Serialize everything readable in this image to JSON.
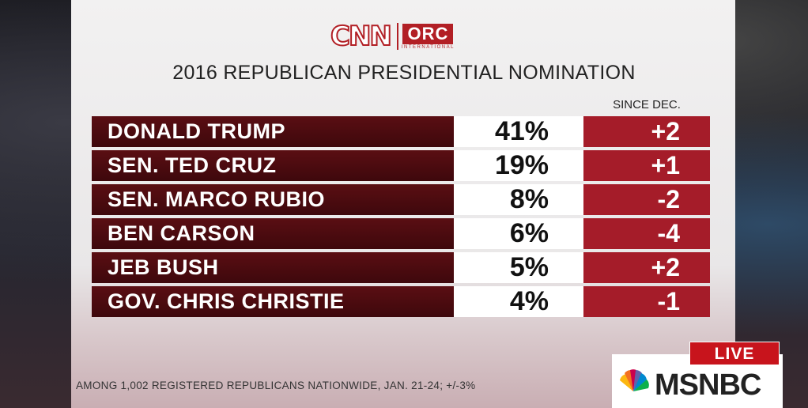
{
  "header": {
    "cnn_logo": "CNN",
    "orc_logo": "ORC",
    "orc_sub": "INTERNATIONAL",
    "title": "2016 REPUBLICAN PRESIDENTIAL NOMINATION",
    "change_header": "SINCE DEC."
  },
  "colors": {
    "name_bg": "#4a0b0f",
    "change_bg": "#a51c29",
    "live_bg": "#c8141c",
    "brand_red": "#b21f25"
  },
  "results": [
    {
      "name": "DONALD TRUMP",
      "pct": "41%",
      "change": "+2"
    },
    {
      "name": "SEN. TED CRUZ",
      "pct": "19%",
      "change": "+1"
    },
    {
      "name": "SEN. MARCO RUBIO",
      "pct": "8%",
      "change": "-2"
    },
    {
      "name": "BEN CARSON",
      "pct": "6%",
      "change": "-4"
    },
    {
      "name": "JEB BUSH",
      "pct": "5%",
      "change": "+2"
    },
    {
      "name": "GOV. CHRIS CHRISTIE",
      "pct": "4%",
      "change": "-1"
    }
  ],
  "footnote": "AMONG 1,002 REGISTERED REPUBLICANS NATIONWIDE, JAN. 21-24; +/-3%",
  "broadcast": {
    "live_label": "LIVE",
    "network": "MSNBC",
    "network_icon": "peacock-icon"
  }
}
